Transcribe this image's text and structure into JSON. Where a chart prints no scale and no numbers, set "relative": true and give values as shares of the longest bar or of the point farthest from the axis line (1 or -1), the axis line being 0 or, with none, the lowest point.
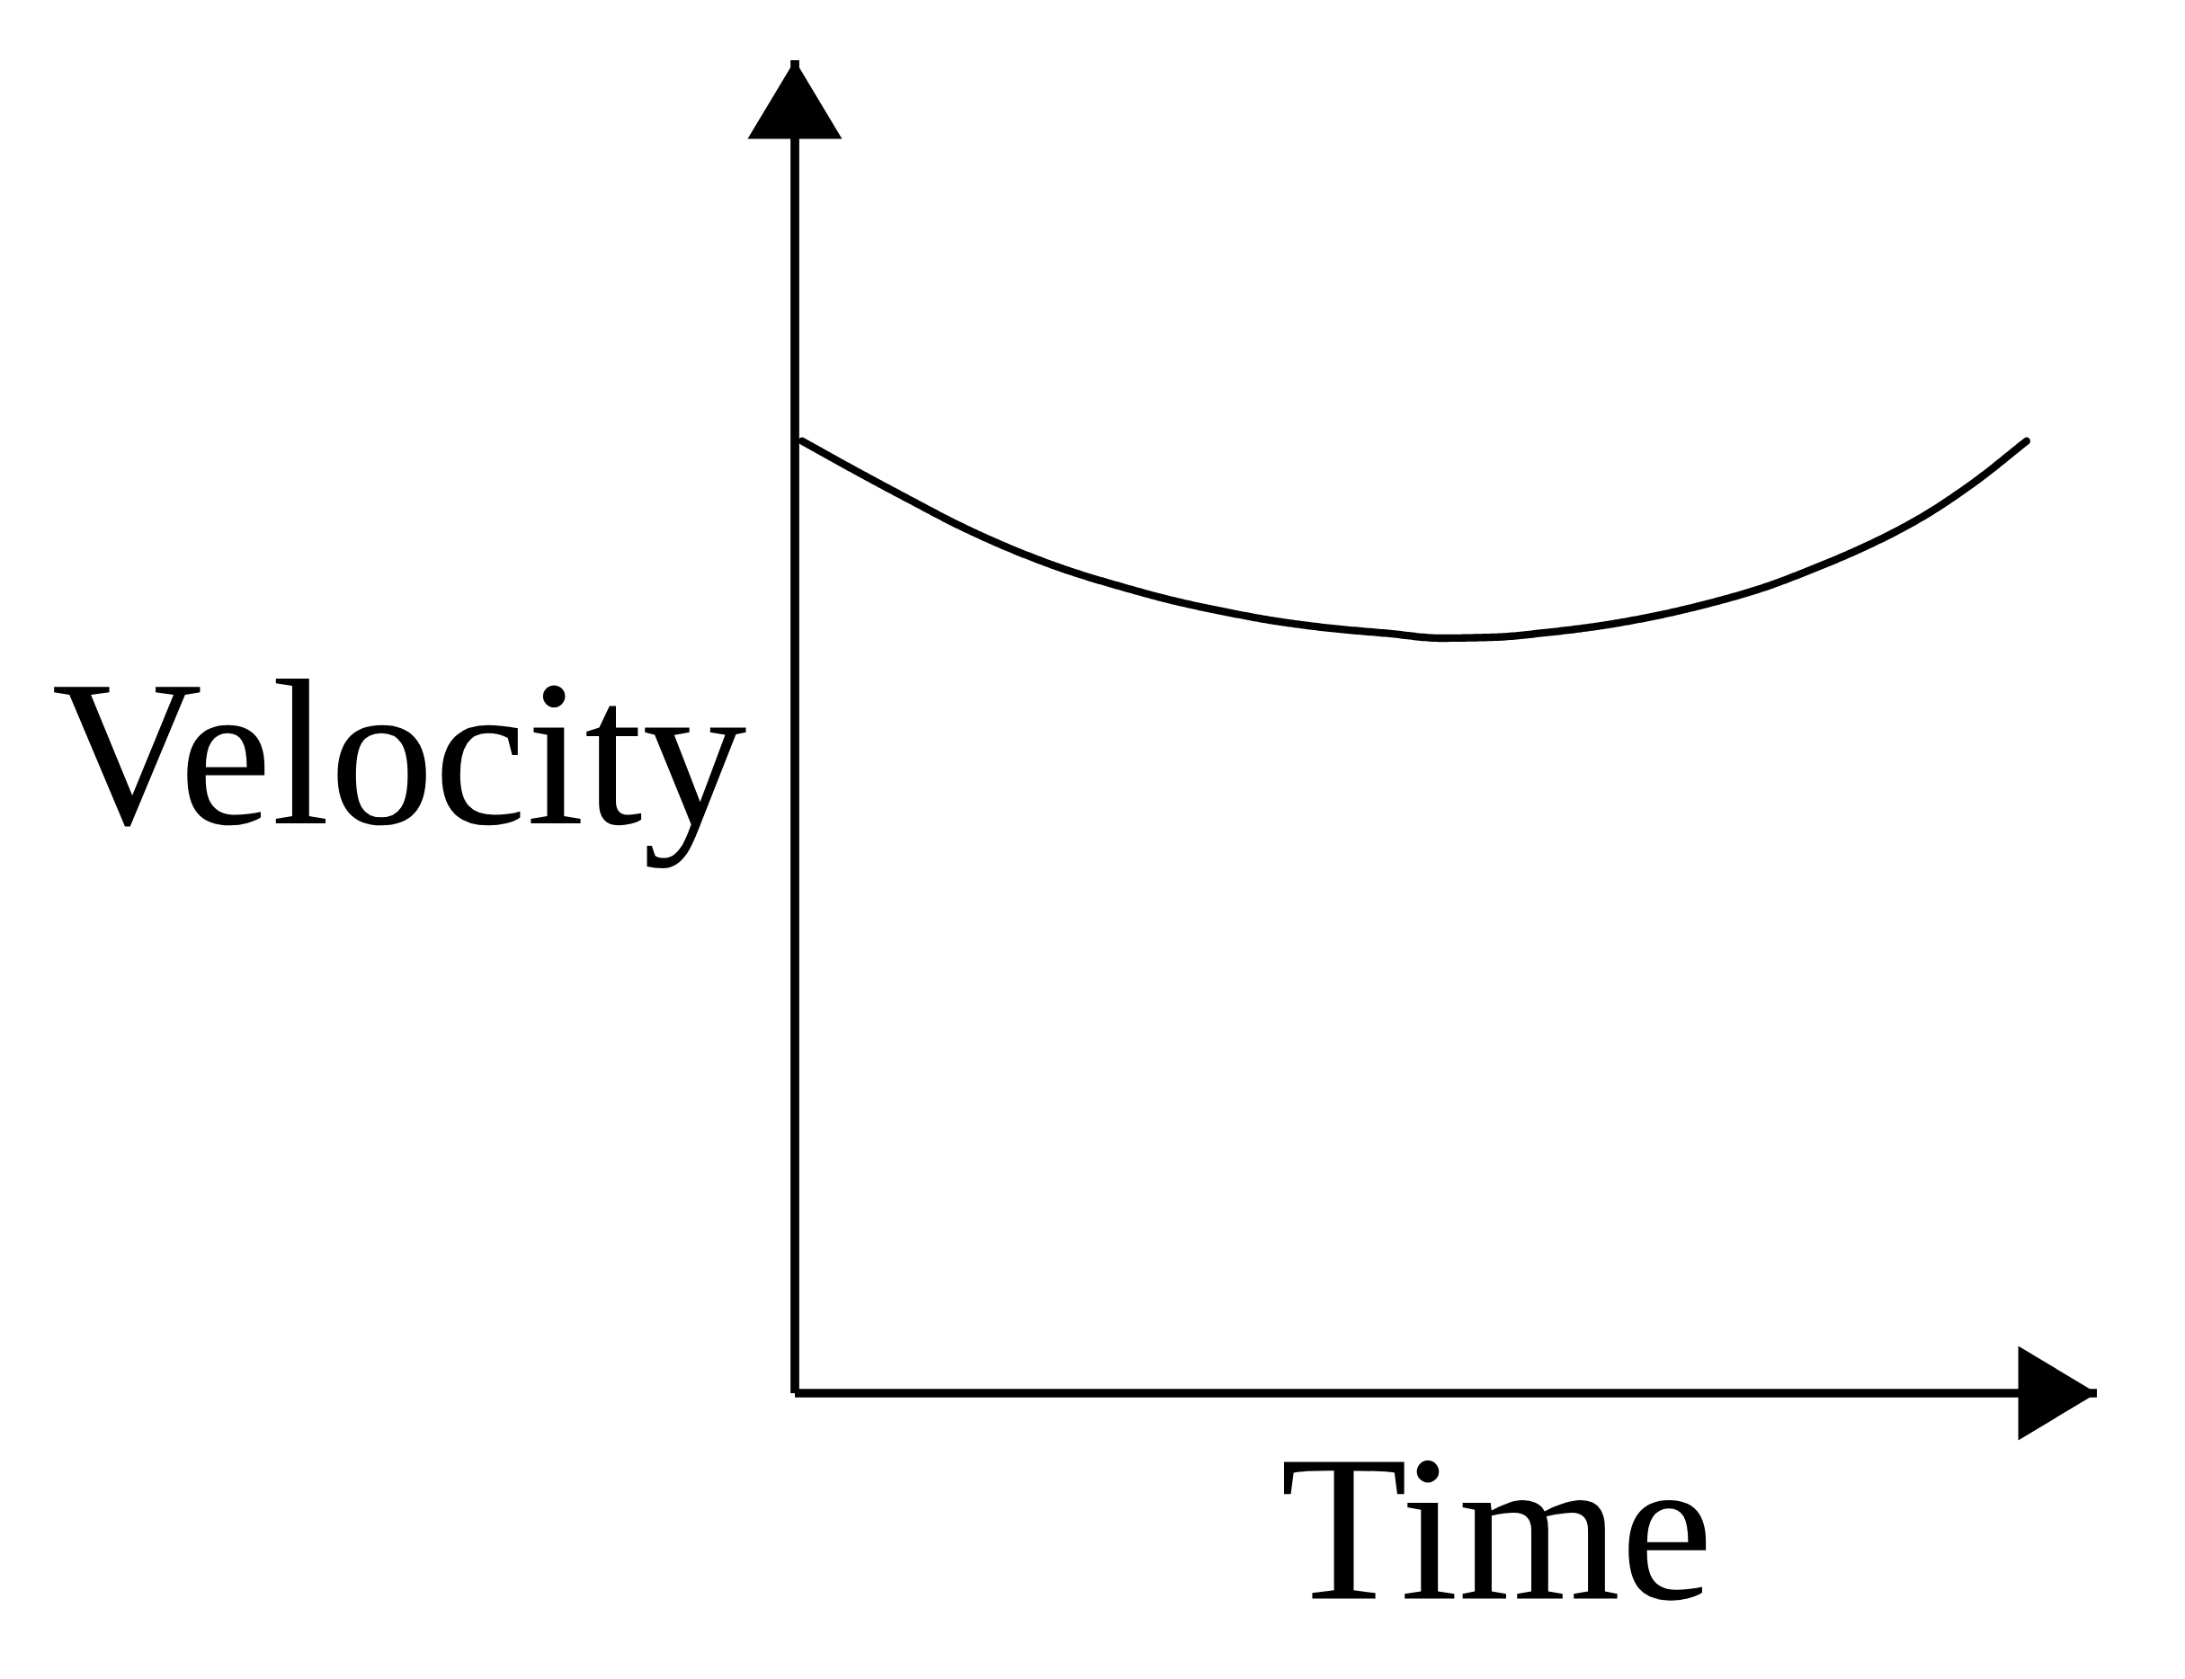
{
  "chart_data": {
    "type": "line",
    "relative": true,
    "xlabel": "Time",
    "ylabel": "Velocity",
    "categories": [
      null,
      null,
      null,
      null,
      null,
      null,
      null,
      null,
      null,
      null,
      null,
      null,
      null,
      null,
      null,
      null,
      null,
      null,
      null,
      null,
      null,
      null,
      null,
      null
    ],
    "series": [
      {
        "color": "#000000",
        "values": [
          1.0,
          0.969,
          0.939,
          0.91,
          0.885,
          0.864,
          0.847,
          0.832,
          0.82,
          0.81,
          0.803,
          0.798,
          0.793,
          0.794,
          0.799,
          0.806,
          0.816,
          0.829,
          0.845,
          0.866,
          0.89,
          0.919,
          0.956,
          1.0
        ]
      }
    ]
  }
}
